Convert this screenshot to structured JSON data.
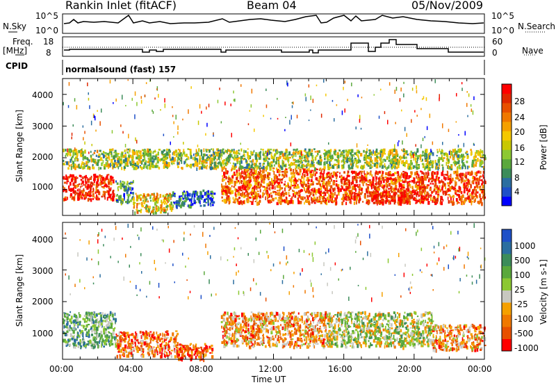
{
  "header": {
    "title": "Rankin Inlet (fitACF)",
    "beam": "Beam 04",
    "date": "05/Nov/2009"
  },
  "top_panels": {
    "nsky_label": "N.Sky",
    "nsky_ticks": [
      "10^5",
      "10^0"
    ],
    "nsearch_label": "N.Search",
    "nsearch_ticks": [
      "10^5",
      "10^0"
    ],
    "freq_label_1": "Freq.",
    "freq_label_2": "[MHz]",
    "freq_ticks": [
      "18",
      "8"
    ],
    "nave_label": "Nave",
    "nave_ticks": [
      "60",
      "0"
    ],
    "cpid_label": "CPID",
    "cpid_value": "normalsound (fast) 157"
  },
  "chart_data": [
    {
      "type": "heatmap",
      "name": "power",
      "ylabel": "Slant Range [km]",
      "ylim": [
        180,
        4500
      ],
      "yticks": [
        "1000",
        "2000",
        "3000",
        "4000"
      ],
      "colorbar_label": "Power [dB]",
      "colorbar_ticks": [
        "4",
        "8",
        "12",
        "16",
        "20",
        "24",
        "28"
      ],
      "colorbar_colors": [
        "#0000ff",
        "#1e50c8",
        "#2b6ea0",
        "#3c8c5a",
        "#5aa83c",
        "#8cc832",
        "#c8c800",
        "#f5c800",
        "#f5a000",
        "#f07800",
        "#e85000",
        "#e02800",
        "#ff0000"
      ],
      "bands": [
        {
          "x": [
            0.0,
            2.9
          ],
          "y": [
            700,
            1500
          ],
          "level": 0.92
        },
        {
          "x": [
            3.0,
            4.0
          ],
          "y": [
            600,
            1300
          ],
          "level": 0.3
        },
        {
          "x": [
            4.0,
            6.2
          ],
          "y": [
            300,
            900
          ],
          "level": 0.55
        },
        {
          "x": [
            6.2,
            8.6
          ],
          "y": [
            500,
            1000
          ],
          "level": 0.2
        },
        {
          "x": [
            9.0,
            15.0
          ],
          "y": [
            600,
            1700
          ],
          "level": 0.8
        },
        {
          "x": [
            15.0,
            24.0
          ],
          "y": [
            600,
            1600
          ],
          "level": 0.85
        },
        {
          "x": [
            17.5,
            20.5
          ],
          "y": [
            600,
            1000
          ],
          "level": 0.97
        },
        {
          "x": [
            0.0,
            24.0
          ],
          "y": [
            1700,
            2300
          ],
          "level": 0.45
        }
      ]
    },
    {
      "type": "heatmap",
      "name": "velocity",
      "ylabel": "Slant Range [km]",
      "xlabel": "Time UT",
      "ylim": [
        180,
        4500
      ],
      "yticks": [
        "1000",
        "2000",
        "3000",
        "4000"
      ],
      "xticks": [
        "00:00",
        "04:00",
        "08:00",
        "12:00",
        "16:00",
        "20:00",
        "00:00"
      ],
      "colorbar_label": "Velocity [m s-1]",
      "colorbar_ticks": [
        "1000",
        "500",
        "100",
        "25",
        "-25",
        "-100",
        "-500",
        "-1000"
      ],
      "colorbar_colors": [
        "#1e50c8",
        "#2b6ea0",
        "#3c8c5a",
        "#5aa83c",
        "#8cc832",
        "#c8c8c0",
        "#f5a000",
        "#f07800",
        "#e85000",
        "#ff0000"
      ],
      "bands": [
        {
          "x": [
            0.0,
            3.0
          ],
          "y": [
            600,
            1700
          ],
          "level": 0.35
        },
        {
          "x": [
            3.0,
            6.5
          ],
          "y": [
            300,
            1100
          ],
          "level": 0.75
        },
        {
          "x": [
            6.5,
            8.5
          ],
          "y": [
            200,
            700
          ],
          "level": 0.85
        },
        {
          "x": [
            9.0,
            15.0
          ],
          "y": [
            600,
            1700
          ],
          "level": 0.7
        },
        {
          "x": [
            15.0,
            21.0
          ],
          "y": [
            600,
            1700
          ],
          "level": 0.5
        },
        {
          "x": [
            21.0,
            24.0
          ],
          "y": [
            500,
            1300
          ],
          "level": 0.7
        }
      ]
    }
  ]
}
